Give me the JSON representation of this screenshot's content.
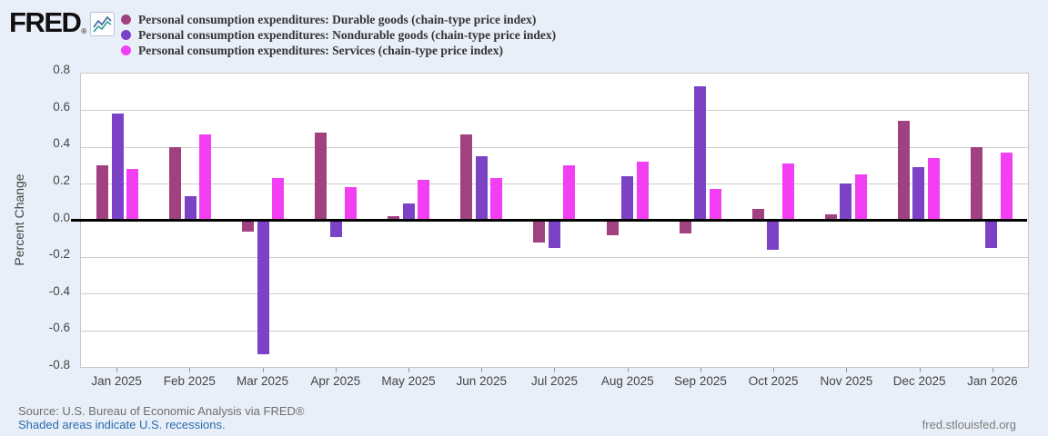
{
  "brand": {
    "logo_text": "FRED",
    "registered_mark": "®"
  },
  "chart_data": {
    "type": "bar",
    "title": "",
    "xlabel": "",
    "ylabel": "Percent Change",
    "ylim": [
      -0.8,
      0.8
    ],
    "y_tick_labels": [
      "0.8",
      "0.6",
      "0.4",
      "0.2",
      "0.0",
      "-0.2",
      "-0.4",
      "-0.6",
      "-0.8"
    ],
    "grid": true,
    "legend_position": "top",
    "zero_line": true,
    "categories": [
      "Jan 2025",
      "Feb 2025",
      "Mar 2025",
      "Apr 2025",
      "May 2025",
      "Jun 2025",
      "Jul 2025",
      "Aug 2025",
      "Sep 2025",
      "Oct 2025",
      "Nov 2025",
      "Dec 2025",
      "Jan 2026"
    ],
    "series": [
      {
        "name": "Personal consumption expenditures: Durable goods (chain-type price index)",
        "color": "#a04180",
        "values": [
          0.3,
          0.4,
          -0.06,
          0.48,
          0.02,
          0.47,
          -0.12,
          -0.08,
          -0.07,
          0.06,
          0.03,
          0.54,
          0.4
        ]
      },
      {
        "name": "Personal consumption expenditures: Nondurable goods (chain-type price index)",
        "color": "#7b42c5",
        "values": [
          0.58,
          0.13,
          -0.73,
          -0.09,
          0.09,
          0.35,
          -0.15,
          0.24,
          0.73,
          -0.16,
          0.2,
          0.29,
          -0.15
        ]
      },
      {
        "name": "Personal consumption expenditures: Services (chain-type price index)",
        "color": "#f33ff3",
        "values": [
          0.28,
          0.47,
          0.23,
          0.18,
          0.22,
          0.23,
          0.3,
          0.32,
          0.17,
          0.31,
          0.25,
          0.34,
          0.37
        ]
      }
    ]
  },
  "footer": {
    "source": "Source: U.S. Bureau of Economic Analysis via FRED®",
    "recession_note": "Shaded areas indicate U.S. recessions.",
    "site": "fred.stlouisfed.org"
  }
}
